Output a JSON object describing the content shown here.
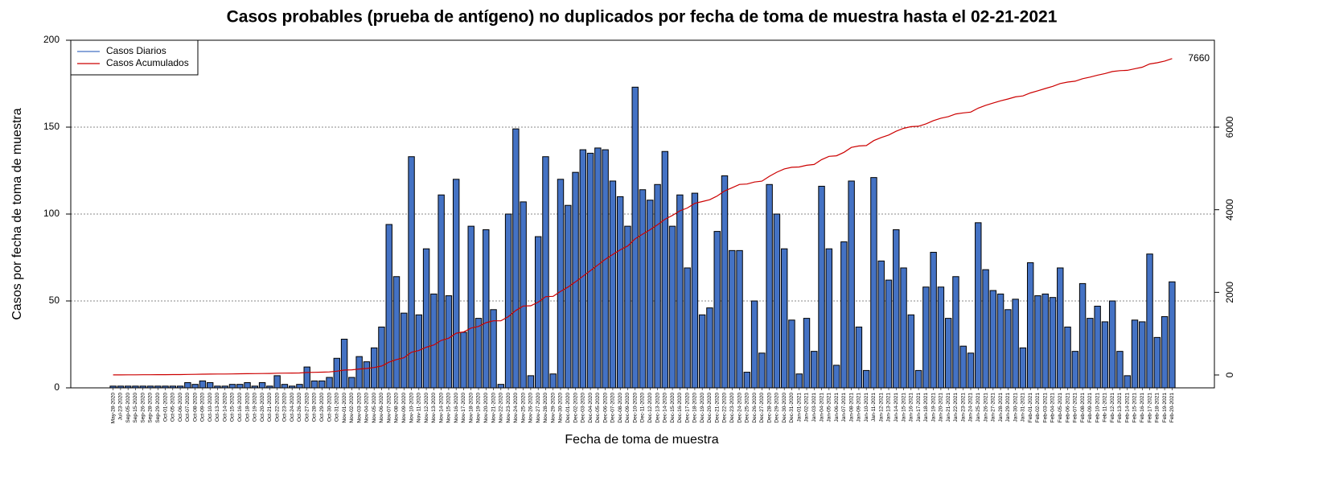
{
  "chart_data": {
    "type": "bar",
    "title": "Casos probables (prueba de antígeno) no duplicados por fecha de toma de muestra hasta el 02-21-2021",
    "xlabel": "Fecha de toma de muestra",
    "ylabel": "Casos por fecha de toma de muestra",
    "ylim": [
      0,
      200
    ],
    "yticks": [
      0,
      50,
      100,
      150,
      200
    ],
    "y2lim": [
      -312,
      8104
    ],
    "y2ticks": [
      0,
      2000,
      4000,
      6000
    ],
    "grid": true,
    "legend": "top-left",
    "annotation": 7660,
    "categories": [
      "May-28-2020",
      "Jul-23-2020",
      "Sep-05-2020",
      "Sep-15-2020",
      "Sep-26-2020",
      "Sep-28-2020",
      "Sep-29-2020",
      "Oct-01-2020",
      "Oct-05-2020",
      "Oct-06-2020",
      "Oct-07-2020",
      "Oct-08-2020",
      "Oct-09-2020",
      "Oct-10-2020",
      "Oct-13-2020",
      "Oct-14-2020",
      "Oct-15-2020",
      "Oct-16-2020",
      "Oct-18-2020",
      "Oct-19-2020",
      "Oct-20-2020",
      "Oct-21-2020",
      "Oct-22-2020",
      "Oct-23-2020",
      "Oct-24-2020",
      "Oct-26-2020",
      "Oct-27-2020",
      "Oct-28-2020",
      "Oct-29-2020",
      "Oct-30-2020",
      "Oct-31-2020",
      "Nov-01-2020",
      "Nov-02-2020",
      "Nov-03-2020",
      "Nov-04-2020",
      "Nov-05-2020",
      "Nov-06-2020",
      "Nov-07-2020",
      "Nov-08-2020",
      "Nov-09-2020",
      "Nov-10-2020",
      "Nov-11-2020",
      "Nov-12-2020",
      "Nov-13-2020",
      "Nov-14-2020",
      "Nov-15-2020",
      "Nov-16-2020",
      "Nov-17-2020",
      "Nov-18-2020",
      "Nov-19-2020",
      "Nov-20-2020",
      "Nov-21-2020",
      "Nov-22-2020",
      "Nov-23-2020",
      "Nov-24-2020",
      "Nov-25-2020",
      "Nov-26-2020",
      "Nov-27-2020",
      "Nov-28-2020",
      "Nov-29-2020",
      "Nov-30-2020",
      "Dec-01-2020",
      "Dec-02-2020",
      "Dec-03-2020",
      "Dec-04-2020",
      "Dec-05-2020",
      "Dec-06-2020",
      "Dec-07-2020",
      "Dec-08-2020",
      "Dec-09-2020",
      "Dec-10-2020",
      "Dec-11-2020",
      "Dec-12-2020",
      "Dec-13-2020",
      "Dec-14-2020",
      "Dec-15-2020",
      "Dec-16-2020",
      "Dec-17-2020",
      "Dec-18-2020",
      "Dec-19-2020",
      "Dec-20-2020",
      "Dec-21-2020",
      "Dec-22-2020",
      "Dec-23-2020",
      "Dec-24-2020",
      "Dec-25-2020",
      "Dec-26-2020",
      "Dec-27-2020",
      "Dec-28-2020",
      "Dec-29-2020",
      "Dec-30-2020",
      "Dec-31-2020",
      "Jan-01-2021",
      "Jan-02-2021",
      "Jan-03-2021",
      "Jan-04-2021",
      "Jan-05-2021",
      "Jan-06-2021",
      "Jan-07-2021",
      "Jan-08-2021",
      "Jan-09-2021",
      "Jan-10-2021",
      "Jan-11-2021",
      "Jan-12-2021",
      "Jan-13-2021",
      "Jan-14-2021",
      "Jan-15-2021",
      "Jan-16-2021",
      "Jan-17-2021",
      "Jan-18-2021",
      "Jan-19-2021",
      "Jan-20-2021",
      "Jan-21-2021",
      "Jan-22-2021",
      "Jan-23-2021",
      "Jan-24-2021",
      "Jan-25-2021",
      "Jan-26-2021",
      "Jan-27-2021",
      "Jan-28-2021",
      "Jan-29-2021",
      "Jan-30-2021",
      "Jan-31-2021",
      "Feb-01-2021",
      "Feb-02-2021",
      "Feb-03-2021",
      "Feb-04-2021",
      "Feb-05-2021",
      "Feb-06-2021",
      "Feb-07-2021",
      "Feb-08-2021",
      "Feb-09-2021",
      "Feb-10-2021",
      "Feb-11-2021",
      "Feb-12-2021",
      "Feb-13-2021",
      "Feb-14-2021",
      "Feb-15-2021",
      "Feb-16-2021",
      "Feb-17-2021",
      "Feb-18-2021",
      "Feb-19-2021",
      "Feb-20-2021"
    ],
    "series": [
      {
        "name": "Casos Diarios",
        "type": "bar",
        "color": "#4472c4",
        "values": [
          1,
          1,
          1,
          1,
          1,
          1,
          1,
          1,
          1,
          1,
          3,
          2,
          4,
          3,
          1,
          1,
          2,
          2,
          3,
          1,
          3,
          1,
          7,
          2,
          1,
          2,
          12,
          4,
          4,
          6,
          17,
          28,
          6,
          18,
          15,
          23,
          35,
          94,
          64,
          43,
          133,
          42,
          80,
          54,
          111,
          53,
          120,
          32,
          93,
          40,
          91,
          45,
          2,
          100,
          149,
          107,
          7,
          87,
          133,
          8,
          120,
          105,
          124,
          137,
          135,
          138,
          137,
          119,
          110,
          93,
          173,
          114,
          108,
          117,
          136,
          93,
          111,
          69,
          112,
          42,
          46,
          90,
          122,
          79,
          79,
          9,
          50,
          20,
          117,
          100,
          80,
          39,
          8,
          40,
          21,
          116,
          80,
          13,
          84,
          119,
          35,
          10,
          121,
          73,
          62,
          91,
          69,
          42,
          10,
          58,
          78,
          58,
          40,
          64,
          24,
          20,
          95,
          68,
          56,
          54,
          45,
          51,
          23,
          72,
          53,
          54,
          52,
          69,
          35,
          21,
          60,
          40,
          47,
          38,
          50,
          21,
          7,
          39,
          38,
          77,
          29,
          41,
          61
        ]
      },
      {
        "name": "Casos Acumulados",
        "type": "line",
        "axis": "y2",
        "color": "#cc0000",
        "values": [
          1,
          2,
          3,
          4,
          5,
          6,
          7,
          8,
          9,
          10,
          13,
          15,
          19,
          22,
          23,
          24,
          26,
          28,
          31,
          32,
          35,
          36,
          43,
          45,
          46,
          48,
          60,
          64,
          68,
          74,
          91,
          119,
          125,
          143,
          158,
          181,
          216,
          310,
          374,
          417,
          550,
          592,
          672,
          726,
          837,
          890,
          1010,
          1042,
          1135,
          1175,
          1266,
          1311,
          1313,
          1413,
          1562,
          1669,
          1676,
          1763,
          1896,
          1904,
          2024,
          2129,
          2253,
          2390,
          2525,
          2663,
          2800,
          2919,
          3029,
          3122,
          3295,
          3409,
          3517,
          3634,
          3770,
          3863,
          3974,
          4043,
          4155,
          4197,
          4243,
          4333,
          4455,
          4534,
          4613,
          4622,
          4672,
          4692,
          4809,
          4909,
          4989,
          5028,
          5036,
          5076,
          5097,
          5213,
          5293,
          5306,
          5390,
          5509,
          5544,
          5554,
          5675,
          5748,
          5810,
          5901,
          5970,
          6012,
          6022,
          6080,
          6158,
          6216,
          6256,
          6320,
          6344,
          6364,
          6459,
          6527,
          6583,
          6637,
          6682,
          6733,
          6756,
          6828,
          6881,
          6935,
          6987,
          7056,
          7091,
          7112,
          7172,
          7212,
          7259,
          7297,
          7347,
          7368,
          7375,
          7414,
          7452,
          7529,
          7558,
          7599,
          7660
        ]
      }
    ]
  }
}
